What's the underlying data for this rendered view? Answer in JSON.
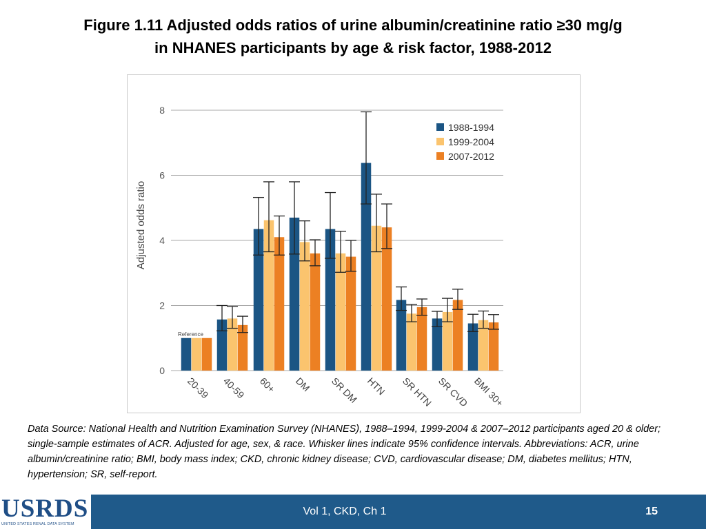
{
  "slide": {
    "title_line1": "Figure 1.11 Adjusted odds ratios of urine albumin/creatinine ratio ≥30 mg/g",
    "title_line2": "in NHANES participants by age & risk factor, 1988-2012",
    "caption": "Data Source: National Health and Nutrition Examination Survey (NHANES), 1988–1994, 1999-2004 & 2007–2012 participants aged 20 & older; single-sample estimates of ACR. Adjusted for age, sex, & race. Whisker lines indicate 95% confidence intervals. Abbreviations: ACR, urine albumin/creatinine ratio; BMI, body mass index; CKD, chronic kidney disease; CVD, cardiovascular disease; DM, diabetes mellitus;  HTN, hypertension; SR, self-report."
  },
  "footer": {
    "logo_text": "USRDS",
    "logo_subtext": "UNITED STATES RENAL DATA SYSTEM",
    "center_text": "Vol 1, CKD, Ch 1",
    "page_number": "15",
    "background_color": "#1f5a8a"
  },
  "chart_data": {
    "type": "bar",
    "ylabel": "Adjusted odds ratio",
    "xlabel": "",
    "ylim": [
      0,
      8
    ],
    "yticks": [
      0,
      2,
      4,
      6,
      8
    ],
    "grid": true,
    "legend_position": "top-right",
    "categories": [
      "20-39",
      "40-59",
      "60+",
      "DM",
      "SR DM",
      "HTN",
      "SR HTN",
      "SR CVD",
      "BMI 30+"
    ],
    "reference_label": "Reference",
    "series": [
      {
        "name": "1988-1994",
        "color": "#1b5584",
        "values": [
          1.0,
          1.57,
          4.35,
          4.7,
          4.35,
          6.38,
          2.17,
          1.6,
          1.45
        ],
        "ci_low": [
          null,
          1.22,
          3.55,
          3.58,
          3.45,
          5.12,
          1.85,
          1.35,
          1.2
        ],
        "ci_high": [
          null,
          2.0,
          5.32,
          5.8,
          5.47,
          7.95,
          2.57,
          1.82,
          1.73
        ]
      },
      {
        "name": "1999-2004",
        "color": "#fbc46e",
        "values": [
          1.0,
          1.6,
          4.62,
          3.95,
          3.6,
          4.45,
          1.75,
          1.8,
          1.55
        ],
        "ci_low": [
          null,
          1.3,
          3.65,
          3.37,
          3.02,
          3.65,
          1.5,
          1.5,
          1.3
        ],
        "ci_high": [
          null,
          1.97,
          5.8,
          4.6,
          4.28,
          5.42,
          2.03,
          2.22,
          1.83
        ]
      },
      {
        "name": "2007-2012",
        "color": "#ec8023",
        "values": [
          1.0,
          1.4,
          4.1,
          3.6,
          3.5,
          4.4,
          1.95,
          2.17,
          1.48
        ],
        "ci_low": [
          null,
          1.17,
          3.55,
          3.22,
          3.05,
          3.75,
          1.7,
          1.88,
          1.27
        ],
        "ci_high": [
          null,
          1.67,
          4.75,
          4.02,
          4.0,
          5.12,
          2.2,
          2.5,
          1.72
        ]
      }
    ]
  }
}
